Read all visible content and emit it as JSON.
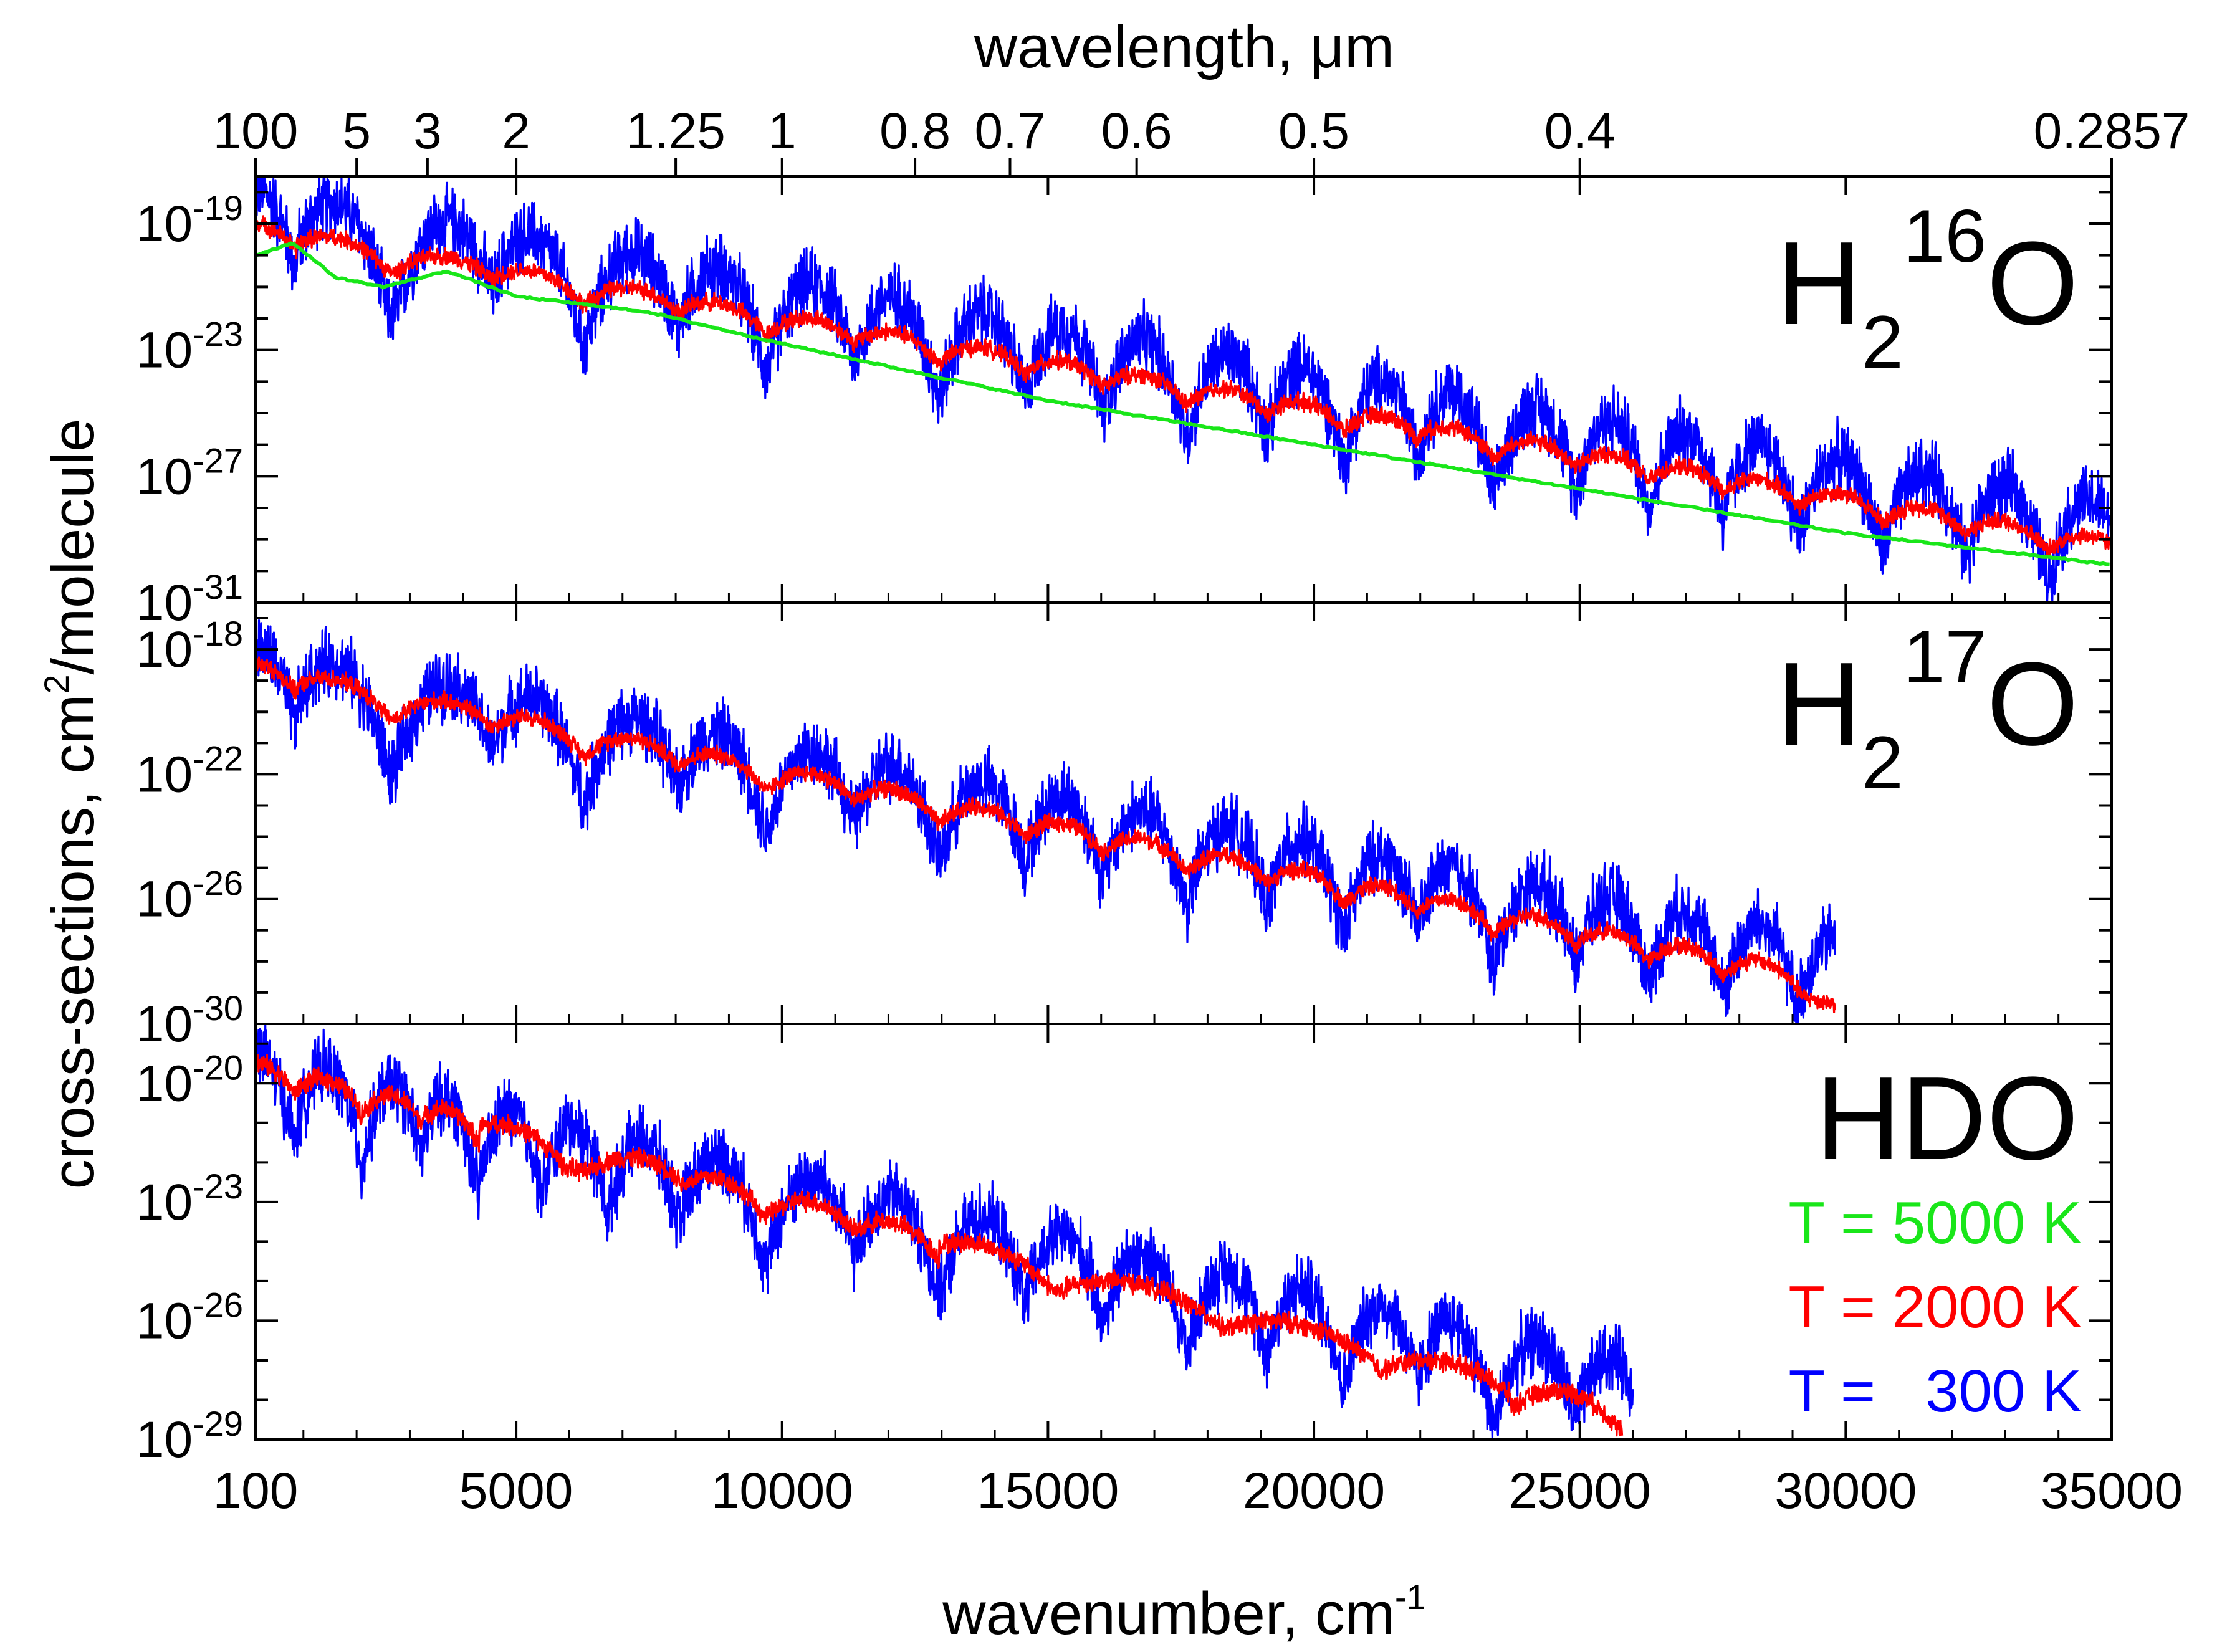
{
  "chart_data": {
    "type": "line",
    "title": "",
    "xlabel": "wavenumber, cm",
    "xlabel_sup": "-1",
    "x2label": "wavelength, μm",
    "ylabel": "cross-sections, cm",
    "ylabel_sup": "2",
    "ylabel_rest": "/molecule",
    "xlim": [
      100,
      35000
    ],
    "x_ticks": [
      100,
      5000,
      10000,
      15000,
      20000,
      25000,
      30000,
      35000
    ],
    "x_tick_labels": [
      "100",
      "5000",
      "10000",
      "15000",
      "20000",
      "25000",
      "30000",
      "35000"
    ],
    "x2_ticks": [
      {
        "label": "100",
        "wavenumber": 100
      },
      {
        "label": "5",
        "wavenumber": 2000
      },
      {
        "label": "3",
        "wavenumber": 3333
      },
      {
        "label": "2",
        "wavenumber": 5000
      },
      {
        "label": "1.25",
        "wavenumber": 8000
      },
      {
        "label": "1",
        "wavenumber": 10000
      },
      {
        "label": "0.8",
        "wavenumber": 12500
      },
      {
        "label": "0.7",
        "wavenumber": 14286
      },
      {
        "label": "0.6",
        "wavenumber": 16667
      },
      {
        "label": "0.5",
        "wavenumber": 20000
      },
      {
        "label": "0.4",
        "wavenumber": 25000
      },
      {
        "label": "0.2857",
        "wavenumber": 35000
      }
    ],
    "legend": [
      {
        "label": "T = 5000 K",
        "color": "#19e619"
      },
      {
        "label": "T = 2000 K",
        "color": "#ff0000"
      },
      {
        "label": "T =   300 K",
        "color": "#0000ff"
      }
    ],
    "legend_position": "right of bottom panel",
    "panels": [
      {
        "species": "H",
        "species_sub": "2",
        "species_sup": "16",
        "species_tail": "O",
        "ylim_log10": [
          -31,
          -17.5
        ],
        "y_ticks": [
          -19,
          -23,
          -27,
          -31
        ],
        "y_tick_bases": [
          "10",
          "10",
          "10",
          "10"
        ],
        "y_tick_exps": [
          "-19",
          "-23",
          "-27",
          "-31"
        ],
        "series": [
          {
            "name": "T = 300 K",
            "color": "#0000ff",
            "xmax": 35000,
            "mean_log10": [
              [
                100,
                -19.5
              ],
              [
                35000,
                -29.5
              ]
            ],
            "band_peaks": [
              150,
              1600,
              3750,
              5300,
              7250,
              8800,
              10600,
              12100,
              13800,
              15300,
              16800,
              18400,
              19800,
              21300,
              22600,
              24200,
              25600,
              27000,
              28400,
              29900,
              31500,
              33000,
              34600
            ],
            "band_amplitude": 3.2,
            "jitter": 0.9
          },
          {
            "name": "T = 2000 K",
            "color": "#ff0000",
            "xmax": 35000,
            "mean_log10": [
              [
                100,
                -19.4
              ],
              [
                35000,
                -29.4
              ]
            ],
            "band_peaks": [
              150,
              1600,
              3750,
              5300,
              7250,
              8800,
              10600,
              12100,
              13800,
              15300,
              16800,
              18400,
              19800,
              21300,
              22600,
              24200,
              25600,
              27000,
              28400,
              29900,
              31500,
              33000,
              34600
            ],
            "band_amplitude": 0.8,
            "jitter": 0.22
          },
          {
            "name": "T = 5000 K",
            "color": "#19e619",
            "xmax": 35000,
            "curve_log10": [
              [
                100,
                -20.0
              ],
              [
                800,
                -19.6
              ],
              [
                1600,
                -20.7
              ],
              [
                2500,
                -21.0
              ],
              [
                3700,
                -20.5
              ],
              [
                5000,
                -21.3
              ],
              [
                7500,
                -21.8
              ],
              [
                10000,
                -22.8
              ],
              [
                15000,
                -24.6
              ],
              [
                20000,
                -26.0
              ],
              [
                25000,
                -27.4
              ],
              [
                30000,
                -28.8
              ],
              [
                35000,
                -29.8
              ]
            ],
            "jitter": 0.05
          }
        ]
      },
      {
        "species": "H",
        "species_sub": "2",
        "species_sup": "17",
        "species_tail": "O",
        "ylim_log10": [
          -30,
          -16.5
        ],
        "y_ticks": [
          -18,
          -22,
          -26,
          -30
        ],
        "y_tick_bases": [
          "10",
          "10",
          "10",
          "10"
        ],
        "y_tick_exps": [
          "-18",
          "-22",
          "-26",
          "-30"
        ],
        "series": [
          {
            "name": "T = 300 K",
            "color": "#0000ff",
            "xmax": 29800,
            "mean_log10": [
              [
                100,
                -19.5
              ],
              [
                29800,
                -28.8
              ]
            ],
            "band_peaks": [
              150,
              1600,
              3750,
              5300,
              7250,
              8800,
              10600,
              12100,
              13800,
              15300,
              16800,
              18400,
              19800,
              21300,
              22600,
              24200,
              25600,
              27000,
              28400,
              29800
            ],
            "band_amplitude": 3.1,
            "jitter": 0.9
          },
          {
            "name": "T = 2000 K",
            "color": "#ff0000",
            "xmax": 29800,
            "mean_log10": [
              [
                100,
                -18.9
              ],
              [
                29800,
                -28.9
              ]
            ],
            "band_peaks": [
              150,
              1600,
              3750,
              5300,
              7250,
              8800,
              10600,
              12100,
              13800,
              15300,
              16800,
              18400,
              19800,
              21300,
              22600,
              24200,
              25600,
              27000,
              28400
            ],
            "band_amplitude": 0.9,
            "jitter": 0.22
          }
        ]
      },
      {
        "species": "HDO",
        "species_sub": "",
        "species_sup": "",
        "species_tail": "",
        "ylim_log10": [
          -29,
          -18.5
        ],
        "y_ticks": [
          -20,
          -23,
          -26,
          -29
        ],
        "y_tick_bases": [
          "10",
          "10",
          "10",
          "10"
        ],
        "y_tick_exps": [
          "-20",
          "-23",
          "-26",
          "-29"
        ],
        "series": [
          {
            "name": "T = 300 K",
            "color": "#0000ff",
            "xmax": 26000,
            "mean_log10": [
              [
                100,
                -20.5
              ],
              [
                26000,
                -28.3
              ]
            ],
            "band_peaks": [
              150,
              1450,
              2700,
              3700,
              4900,
              6100,
              7400,
              8800,
              10600,
              12100,
              13800,
              15300,
              16800,
              18400,
              19800,
              21300,
              22600,
              24200,
              25600
            ],
            "band_amplitude": 2.5,
            "jitter": 0.7
          },
          {
            "name": "T = 2000 K",
            "color": "#ff0000",
            "xmax": 25800,
            "mean_log10": [
              [
                100,
                -19.8
              ],
              [
                25800,
                -28.5
              ]
            ],
            "band_peaks": [
              150,
              1450,
              2700,
              3700,
              4900,
              7400,
              8800,
              10600,
              12100,
              13800,
              16800,
              19800,
              22600,
              24800
            ],
            "band_amplitude": 0.7,
            "jitter": 0.2
          }
        ]
      }
    ]
  }
}
